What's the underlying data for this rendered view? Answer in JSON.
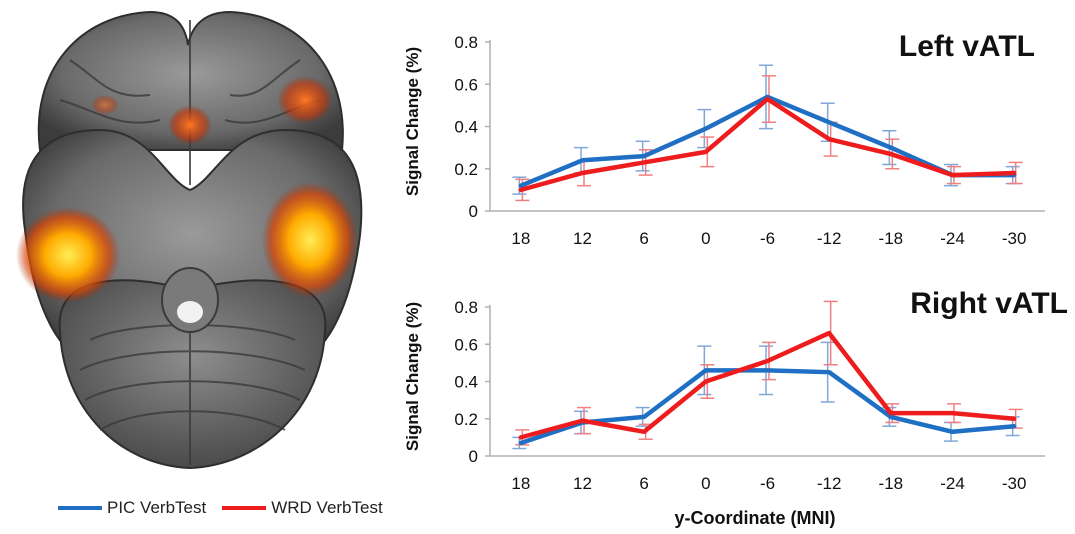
{
  "colors": {
    "pic": "#1f6fc4",
    "wrd": "#ee1c1c",
    "pic_err": "#7fa8d8",
    "wrd_err": "#f08080"
  },
  "legend": {
    "pic": "PIC VerbTest",
    "wrd": "WRD VerbTest"
  },
  "x_axis_title": "y-Coordinate (MNI)",
  "brain_image": {
    "description": "axial brain slice with activation overlay",
    "overlay_colors": [
      "#ffcc00",
      "#ff6600",
      "#cc2200"
    ]
  },
  "chart_data": [
    {
      "type": "line",
      "title": "Left vATL",
      "ylabel": "Signal Change (%)",
      "xlabel": "",
      "categories": [
        "18",
        "12",
        "6",
        "0",
        "-6",
        "-12",
        "-18",
        "-24",
        "-30"
      ],
      "ylim": [
        0,
        0.8
      ],
      "yticks": [
        "0",
        "0.2",
        "0.4",
        "0.6",
        "0.8"
      ],
      "grid": false,
      "series": [
        {
          "name": "PIC VerbTest",
          "values": [
            0.12,
            0.24,
            0.26,
            0.39,
            0.54,
            0.42,
            0.3,
            0.17,
            0.17
          ],
          "error": [
            0.04,
            0.06,
            0.07,
            0.09,
            0.15,
            0.09,
            0.08,
            0.05,
            0.04
          ]
        },
        {
          "name": "WRD VerbTest",
          "values": [
            0.1,
            0.18,
            0.23,
            0.28,
            0.53,
            0.34,
            0.27,
            0.17,
            0.18
          ],
          "error": [
            0.05,
            0.06,
            0.06,
            0.07,
            0.11,
            0.08,
            0.07,
            0.04,
            0.05
          ]
        }
      ]
    },
    {
      "type": "line",
      "title": "Right vATL",
      "ylabel": "Signal Change (%)",
      "xlabel": "y-Coordinate (MNI)",
      "categories": [
        "18",
        "12",
        "6",
        "0",
        "-6",
        "-12",
        "-18",
        "-24",
        "-30"
      ],
      "ylim": [
        0,
        0.8
      ],
      "yticks": [
        "0",
        "0.2",
        "0.4",
        "0.6",
        "0.8"
      ],
      "grid": false,
      "series": [
        {
          "name": "PIC VerbTest",
          "values": [
            0.07,
            0.18,
            0.21,
            0.46,
            0.46,
            0.45,
            0.21,
            0.13,
            0.16
          ],
          "error": [
            0.03,
            0.06,
            0.05,
            0.13,
            0.13,
            0.16,
            0.05,
            0.05,
            0.05
          ]
        },
        {
          "name": "WRD VerbTest",
          "values": [
            0.1,
            0.19,
            0.13,
            0.4,
            0.51,
            0.66,
            0.23,
            0.23,
            0.2
          ],
          "error": [
            0.04,
            0.07,
            0.04,
            0.09,
            0.1,
            0.17,
            0.05,
            0.05,
            0.05
          ]
        }
      ]
    }
  ]
}
